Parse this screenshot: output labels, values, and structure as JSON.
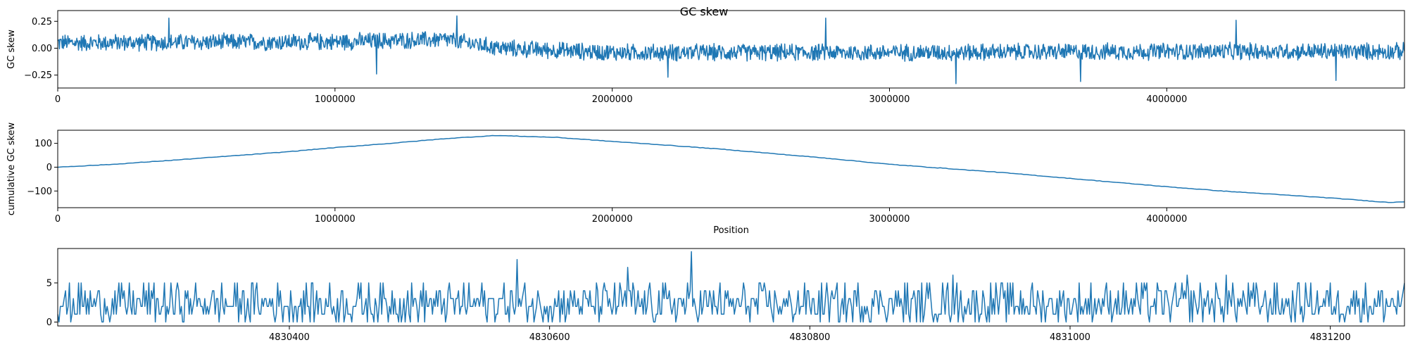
{
  "figure": {
    "title": "GC skew"
  },
  "chart_data": [
    {
      "type": "line",
      "title": "",
      "xlabel": "",
      "ylabel": "GC skew",
      "xlim": [
        0,
        4857432
      ],
      "ylim": [
        -0.37,
        0.35
      ],
      "xticks": [
        0,
        1000000,
        2000000,
        3000000,
        4000000
      ],
      "yticks": [
        -0.25,
        0.0,
        0.25
      ],
      "ytick_labels": [
        "−0.25",
        "0.00",
        "0.25"
      ],
      "grid": false,
      "line_color": "#1f77b4",
      "series": [
        {
          "trend": [
            [
              0,
              0.05
            ],
            [
              1000000,
              0.06
            ],
            [
              1400000,
              0.08
            ],
            [
              1600000,
              0.0
            ],
            [
              2000000,
              -0.04
            ],
            [
              3000000,
              -0.04
            ],
            [
              4000000,
              -0.03
            ],
            [
              4857432,
              -0.03
            ]
          ],
          "amplitude": 0.09,
          "notable_points": [
            [
              400000,
              0.28
            ],
            [
              1150000,
              -0.24
            ],
            [
              1440000,
              0.3
            ],
            [
              2200000,
              -0.27
            ],
            [
              2770000,
              0.28
            ],
            [
              3240000,
              -0.33
            ],
            [
              3690000,
              -0.31
            ],
            [
              4250000,
              0.26
            ],
            [
              4610000,
              -0.3
            ]
          ]
        }
      ]
    },
    {
      "type": "line",
      "title": "",
      "xlabel": "Position",
      "ylabel": "cumulative GC skew",
      "xlim": [
        0,
        4857432
      ],
      "ylim": [
        -170,
        155
      ],
      "xticks": [
        0,
        1000000,
        2000000,
        3000000,
        4000000
      ],
      "yticks": [
        -100,
        0,
        100
      ],
      "ytick_labels": [
        "−100",
        "0",
        "100"
      ],
      "grid": false,
      "line_color": "#1f77b4",
      "series": [
        {
          "x": [
            0,
            200000,
            400000,
            600000,
            800000,
            1000000,
            1200000,
            1400000,
            1580000,
            1800000,
            2000000,
            2200000,
            2400000,
            2600000,
            2800000,
            3000000,
            3200000,
            3400000,
            3600000,
            3800000,
            4000000,
            4200000,
            4400000,
            4600000,
            4800000,
            4857432
          ],
          "y": [
            0,
            12,
            28,
            45,
            62,
            82,
            100,
            120,
            133,
            125,
            108,
            92,
            75,
            55,
            35,
            12,
            -5,
            -22,
            -42,
            -62,
            -82,
            -100,
            -115,
            -130,
            -148,
            -145
          ]
        }
      ]
    },
    {
      "type": "line",
      "title": "",
      "xlabel": "",
      "ylabel": "",
      "xlim": [
        4830222,
        4831257
      ],
      "ylim": [
        -0.5,
        9.4
      ],
      "xticks": [
        4830400,
        4830600,
        4830800,
        4831000,
        4831200
      ],
      "yticks": [
        0,
        5
      ],
      "ytick_labels": [
        "0",
        "5"
      ],
      "grid": false,
      "line_color": "#1f77b4",
      "series": [
        {
          "typical_range": [
            0,
            5
          ],
          "notable_points": [
            [
              4830575,
              8
            ],
            [
              4830660,
              7
            ],
            [
              4830709,
              9
            ],
            [
              4830910,
              6
            ],
            [
              4831090,
              6
            ],
            [
              4831120,
              6
            ]
          ]
        }
      ]
    }
  ]
}
